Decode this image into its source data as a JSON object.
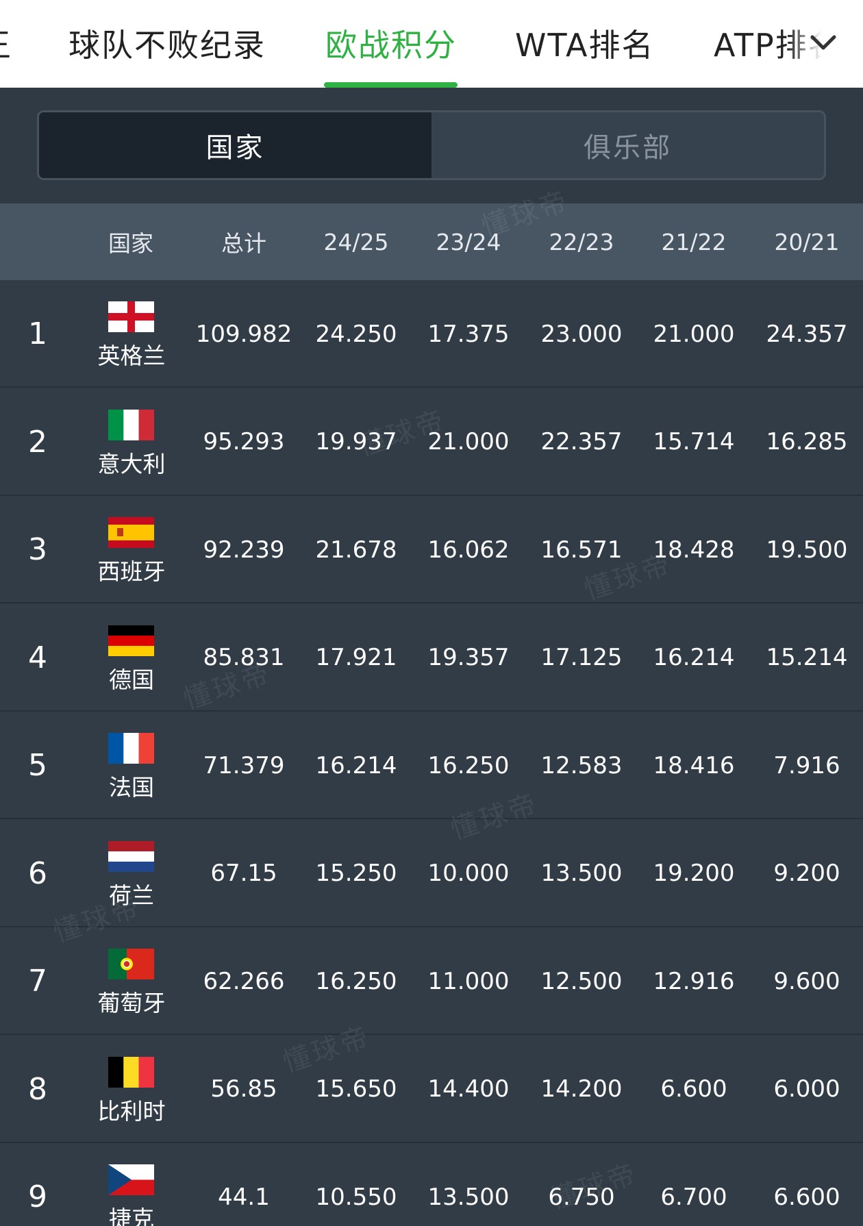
{
  "tabs": [
    {
      "label": "王",
      "active": false
    },
    {
      "label": "球队不败纪录",
      "active": false
    },
    {
      "label": "欧战积分",
      "active": true
    },
    {
      "label": "WTA排名",
      "active": false
    },
    {
      "label": "ATP排名",
      "active": false
    }
  ],
  "segment": {
    "national": "国家",
    "club": "俱乐部",
    "active": "national"
  },
  "columns": [
    "国家",
    "总计",
    "24/25",
    "23/24",
    "22/23",
    "21/22",
    "20/21"
  ],
  "rows": [
    {
      "rank": "1",
      "country": "英格兰",
      "flag": "england",
      "values": [
        "109.982",
        "24.250",
        "17.375",
        "23.000",
        "21.000",
        "24.357"
      ]
    },
    {
      "rank": "2",
      "country": "意大利",
      "flag": "italy",
      "values": [
        "95.293",
        "19.937",
        "21.000",
        "22.357",
        "15.714",
        "16.285"
      ]
    },
    {
      "rank": "3",
      "country": "西班牙",
      "flag": "spain",
      "values": [
        "92.239",
        "21.678",
        "16.062",
        "16.571",
        "18.428",
        "19.500"
      ]
    },
    {
      "rank": "4",
      "country": "德国",
      "flag": "germany",
      "values": [
        "85.831",
        "17.921",
        "19.357",
        "17.125",
        "16.214",
        "15.214"
      ]
    },
    {
      "rank": "5",
      "country": "法国",
      "flag": "france",
      "values": [
        "71.379",
        "16.214",
        "16.250",
        "12.583",
        "18.416",
        "7.916"
      ]
    },
    {
      "rank": "6",
      "country": "荷兰",
      "flag": "netherlands",
      "values": [
        "67.15",
        "15.250",
        "10.000",
        "13.500",
        "19.200",
        "9.200"
      ]
    },
    {
      "rank": "7",
      "country": "葡萄牙",
      "flag": "portugal",
      "values": [
        "62.266",
        "16.250",
        "11.000",
        "12.500",
        "12.916",
        "9.600"
      ]
    },
    {
      "rank": "8",
      "country": "比利时",
      "flag": "belgium",
      "values": [
        "56.85",
        "15.650",
        "14.400",
        "14.200",
        "6.600",
        "6.000"
      ]
    },
    {
      "rank": "9",
      "country": "捷克",
      "flag": "czechia",
      "values": [
        "44.1",
        "10.550",
        "13.500",
        "6.750",
        "6.700",
        "6.600"
      ]
    }
  ],
  "watermark": "懂球帝",
  "colors": {
    "accent": "#2fb243",
    "background": "#2f3a44",
    "header": "#485664"
  }
}
